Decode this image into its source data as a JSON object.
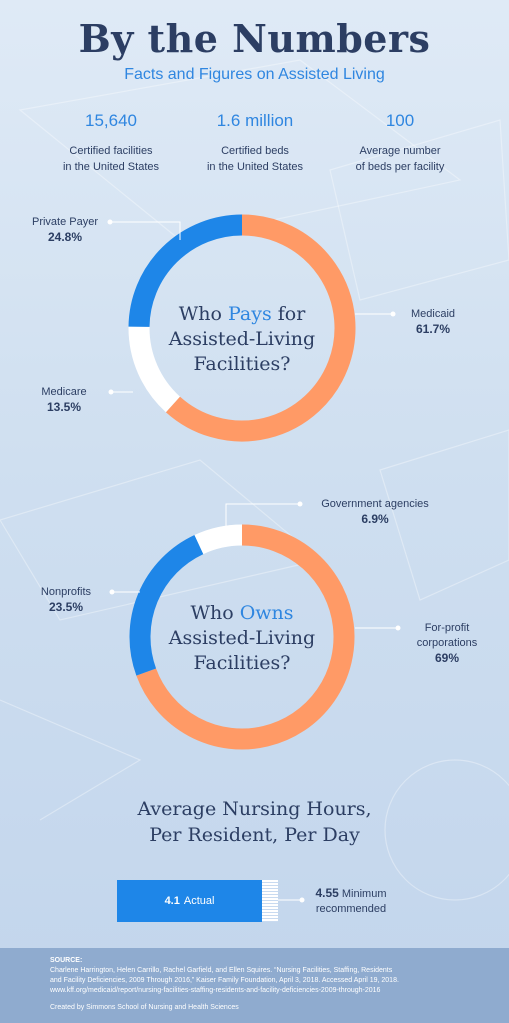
{
  "header": {
    "title": "By the Numbers",
    "subtitle": "Facts and Figures on Assisted Living"
  },
  "stats": [
    {
      "value": "15,640",
      "label_line1": "Certified facilities",
      "label_line2": "in the United States"
    },
    {
      "value": "1.6 million",
      "label_line1": "Certified beds",
      "label_line2": "in the United States"
    },
    {
      "value": "100",
      "label_line1": "Average number",
      "label_line2": "of beds per facility"
    }
  ],
  "colors": {
    "orange": "#ff9a66",
    "blue": "#1e86e8",
    "white": "#ffffff",
    "navy": "#2c3e63",
    "accent": "#2f86e0"
  },
  "chart_data": [
    {
      "type": "pie",
      "title_parts": [
        "Who ",
        "Pays",
        " for",
        "Assisted-Living",
        "Facilities?"
      ],
      "categories": [
        "Medicaid",
        "Medicare",
        "Private Payer"
      ],
      "values": [
        61.7,
        13.5,
        24.8
      ],
      "value_labels": [
        "61.7%",
        "13.5%",
        "24.8%"
      ]
    },
    {
      "type": "pie",
      "title_parts": [
        "Who ",
        "Owns",
        "",
        "Assisted-Living",
        "Facilities?"
      ],
      "categories": [
        "For-profit corporations",
        "Nonprofits",
        "Government agencies"
      ],
      "label_lines": [
        [
          "For-profit",
          "corporations"
        ],
        [
          "Nonprofits"
        ],
        [
          "Government agencies"
        ]
      ],
      "values": [
        69,
        23.5,
        6.9
      ],
      "value_labels": [
        "69%",
        "23.5%",
        "6.9%"
      ]
    },
    {
      "type": "bar",
      "title_line1": "Average Nursing Hours,",
      "title_line2": "Per Resident, Per Day",
      "categories": [
        "Actual",
        "Minimum recommended"
      ],
      "values": [
        4.1,
        4.55
      ],
      "value_labels": [
        "4.1",
        "4.55"
      ],
      "actual_label": "Actual",
      "min_label_line1": "Minimum",
      "min_label_line2": "recommended"
    }
  ],
  "footer": {
    "source_heading": "SOURCE:",
    "source_line1": "Charlene Harrington, Helen Carrillo, Rachel Garfield, and Ellen Squires. “Nursing Facilities, Staffing, Residents",
    "source_line2": "and Facility Deficiencies, 2009 Through 2016,” Kaiser Family Foundation, April 3, 2018. Accessed April 19, 2018.",
    "source_line3": "www.kff.org/medicaid/report/nursing-facilities-staffing-residents-and-facility-deficiencies-2009-through-2016",
    "created_by": "Created by Simmons School of Nursing and Health Sciences"
  }
}
